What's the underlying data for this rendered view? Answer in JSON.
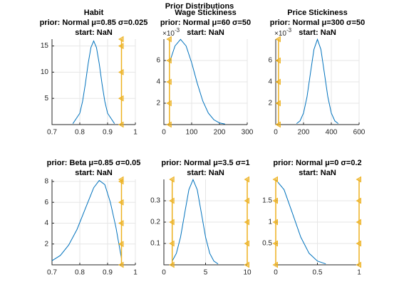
{
  "figure_title": "Prior Distributions",
  "chart_data": [
    {
      "type": "line",
      "title": [
        "Habit",
        "prior: Normal μ=0.85 σ=0.025",
        "start: NaN"
      ],
      "xlim": [
        0.7,
        1
      ],
      "xticks": [
        0.7,
        0.8,
        0.9,
        1
      ],
      "ylim": [
        0,
        16.3
      ],
      "yticks": [
        5,
        10,
        15
      ],
      "grid": true,
      "series": [
        {
          "color": "#0072bd",
          "x": [
            0.775,
            0.8,
            0.81,
            0.82,
            0.83,
            0.84,
            0.85,
            0.86,
            0.87,
            0.88,
            0.89,
            0.9,
            0.925
          ],
          "values": [
            0.18,
            2.16,
            4.43,
            7.77,
            11.6,
            14.7,
            15.96,
            14.7,
            11.6,
            7.77,
            4.43,
            2.16,
            0.18
          ]
        },
        {
          "color": "#edb120",
          "marker": "triangle-left",
          "x": [
            0.95,
            0.95,
            0.95,
            0.95,
            0.95
          ],
          "values": [
            0,
            5,
            10,
            15,
            16.3
          ]
        }
      ]
    },
    {
      "type": "line",
      "title": [
        "Wage Stickiness",
        "prior: Normal μ=60 σ=50",
        "start: NaN"
      ],
      "y_exponent_base": "×10",
      "y_exponent": "-3",
      "xlim": [
        0,
        300
      ],
      "xticks": [
        0,
        100,
        200,
        300
      ],
      "ylim": [
        0,
        8
      ],
      "yticks": [
        2,
        4,
        6
      ],
      "grid": true,
      "series": [
        {
          "color": "#0072bd",
          "x": [
            20,
            40,
            60,
            80,
            100,
            120,
            140,
            160,
            180,
            200,
            220
          ],
          "values": [
            5.79,
            7.36,
            7.98,
            7.36,
            5.79,
            3.88,
            2.21,
            1.08,
            0.45,
            0.16,
            0.05
          ]
        },
        {
          "color": "#edb120",
          "marker": "triangle-left",
          "x": [
            20,
            20,
            20,
            20,
            20
          ],
          "values": [
            0,
            2,
            4,
            6,
            8
          ]
        }
      ]
    },
    {
      "type": "line",
      "title": [
        "Price Stickiness",
        "prior: Normal μ=300 σ=50",
        "start: NaN"
      ],
      "y_exponent_base": "×10",
      "y_exponent": "-3",
      "xlim": [
        0,
        600
      ],
      "xticks": [
        0,
        200,
        400,
        600
      ],
      "ylim": [
        0,
        8
      ],
      "yticks": [
        2,
        4,
        6
      ],
      "grid": true,
      "series": [
        {
          "color": "#0072bd",
          "x": [
            150,
            175,
            200,
            225,
            250,
            275,
            300,
            325,
            350,
            375,
            400,
            425,
            450
          ],
          "values": [
            0.09,
            0.35,
            1.08,
            2.59,
            4.84,
            7.04,
            7.98,
            7.04,
            4.84,
            2.59,
            1.08,
            0.35,
            0.09
          ]
        },
        {
          "color": "#edb120",
          "marker": "triangle-left",
          "x": [
            20,
            20,
            20,
            20,
            20
          ],
          "values": [
            0,
            2,
            4,
            6,
            8
          ]
        }
      ]
    },
    {
      "type": "line",
      "title": [
        "prior: Beta μ=0.85 σ=0.05",
        "start: NaN"
      ],
      "xlim": [
        0.7,
        1
      ],
      "xticks": [
        0.7,
        0.8,
        0.9,
        1
      ],
      "ylim": [
        0,
        8.2
      ],
      "yticks": [
        2,
        4,
        6,
        8
      ],
      "grid": true,
      "series": [
        {
          "color": "#0072bd",
          "x": [
            0.7,
            0.73,
            0.76,
            0.79,
            0.82,
            0.85,
            0.87,
            0.89,
            0.91,
            0.93,
            0.95
          ],
          "values": [
            0.4,
            0.9,
            1.9,
            3.4,
            5.4,
            7.4,
            8.1,
            7.7,
            6.0,
            3.6,
            0.6
          ]
        },
        {
          "color": "#edb120",
          "marker": "triangle-left",
          "x": [
            0.95,
            0.95,
            0.95,
            0.95,
            0.95,
            0.95
          ],
          "values": [
            0,
            2,
            4,
            6,
            8,
            8.2
          ]
        }
      ]
    },
    {
      "type": "line",
      "title": [
        "prior: Normal μ=3.5 σ=1",
        "start: NaN"
      ],
      "xlim": [
        0,
        10
      ],
      "xticks": [
        0,
        5,
        10
      ],
      "ylim": [
        0,
        0.4
      ],
      "yticks": [
        0.1,
        0.2,
        0.3
      ],
      "grid": true,
      "series": [
        {
          "color": "#0072bd",
          "x": [
            1,
            1.5,
            2,
            2.5,
            3,
            3.5,
            4,
            4.5,
            5,
            5.5,
            6,
            6.5
          ],
          "values": [
            0.0175,
            0.054,
            0.13,
            0.242,
            0.352,
            0.399,
            0.352,
            0.242,
            0.13,
            0.054,
            0.0175,
            0.0044
          ]
        },
        {
          "color": "#edb120",
          "marker": "triangle-left",
          "x": [
            1,
            1,
            1,
            1,
            1
          ],
          "values": [
            0,
            0.1,
            0.2,
            0.3,
            0.4
          ]
        },
        {
          "color": "#edb120",
          "marker": "triangle-left",
          "x": [
            10,
            10,
            10,
            10,
            10
          ],
          "values": [
            0,
            0.1,
            0.2,
            0.3,
            0.4
          ]
        }
      ]
    },
    {
      "type": "line",
      "title": [
        "prior: Normal μ=0 σ=0.2",
        "start: NaN"
      ],
      "xlim": [
        0,
        1
      ],
      "xticks": [
        0,
        0.5,
        1
      ],
      "ylim": [
        0,
        2
      ],
      "yticks": [
        0.5,
        1,
        1.5
      ],
      "grid": true,
      "series": [
        {
          "color": "#0072bd",
          "x": [
            0,
            0.1,
            0.2,
            0.3,
            0.4,
            0.5,
            0.6
          ],
          "values": [
            1.995,
            1.76,
            1.21,
            0.65,
            0.27,
            0.088,
            0.022
          ]
        },
        {
          "color": "#edb120",
          "marker": "triangle-left",
          "x": [
            0,
            0,
            0,
            0,
            0
          ],
          "values": [
            0,
            0.5,
            1,
            1.5,
            2
          ]
        },
        {
          "color": "#edb120",
          "marker": "triangle-left",
          "x": [
            1,
            1,
            1,
            1,
            1
          ],
          "values": [
            0,
            0.5,
            1,
            1.5,
            2
          ]
        }
      ]
    }
  ]
}
